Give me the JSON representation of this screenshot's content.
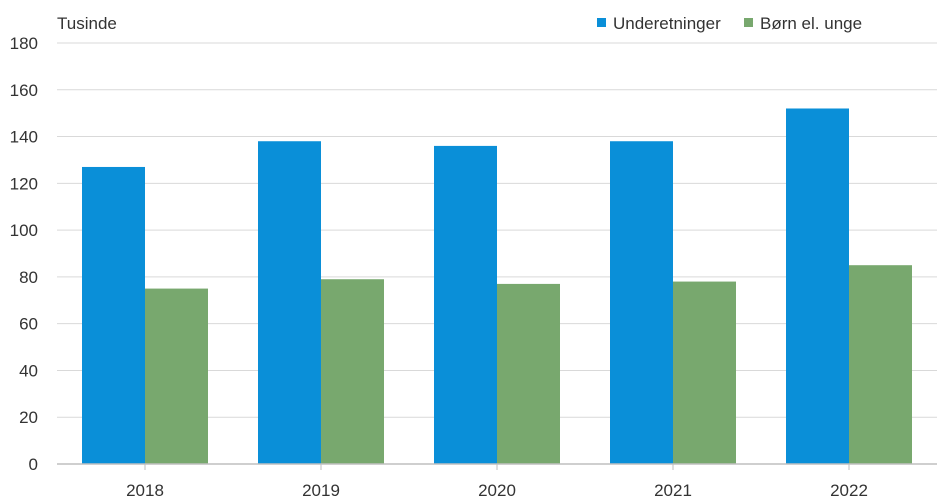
{
  "chart_data": {
    "type": "bar",
    "unit_label": "Tusinde",
    "categories": [
      "2018",
      "2019",
      "2020",
      "2021",
      "2022"
    ],
    "series": [
      {
        "name": "Underetninger",
        "color": "#0a8fd8",
        "values": [
          127,
          138,
          136,
          138,
          152
        ]
      },
      {
        "name": "Børn el. unge",
        "color": "#78a86e",
        "values": [
          75,
          79,
          77,
          78,
          85
        ]
      }
    ],
    "ylim": [
      0,
      180
    ],
    "yticks": [
      0,
      20,
      40,
      60,
      80,
      100,
      120,
      140,
      160,
      180
    ],
    "grid": true,
    "legend_position": "top-right"
  }
}
